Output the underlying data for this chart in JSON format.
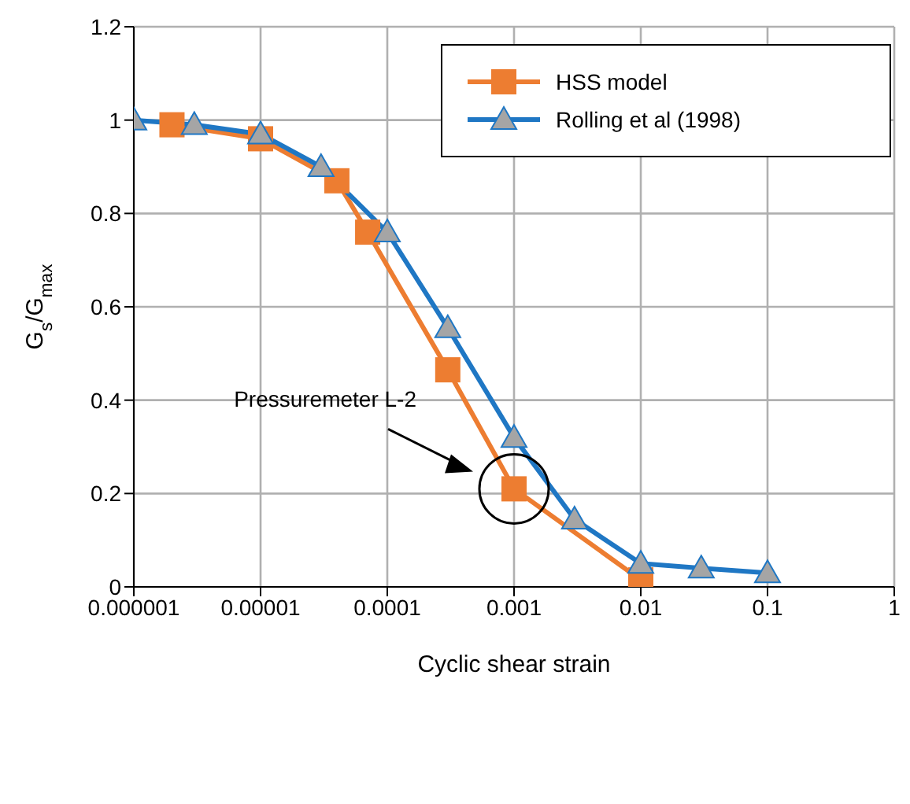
{
  "chart_data": {
    "type": "line",
    "xlabel": "Cyclic shear strain",
    "ylabel": "G$_{s}$/G$_{max}$",
    "log": "x",
    "xlim": [
      1e-06,
      1
    ],
    "xticks": [
      {
        "value": 1e-06,
        "label": "0.000001"
      },
      {
        "value": 1e-05,
        "label": "0.00001"
      },
      {
        "value": 0.0001,
        "label": "0.0001"
      },
      {
        "value": 0.001,
        "label": "0.001"
      },
      0.01,
      0.1,
      1
    ],
    "ylim": [
      0,
      1.2
    ],
    "yticks": [
      0,
      0.2,
      0.4,
      0.6,
      0.8,
      1,
      1.2
    ],
    "grid": true,
    "legend": "top right",
    "line_style": "solid",
    "series": [
      {
        "name": "HSS model",
        "color": "#ed7d31",
        "marker": "square",
        "x": [
          2e-06,
          1e-05,
          4e-05,
          7e-05,
          0.0003,
          0.001,
          0.01
        ],
        "values": [
          0.99,
          0.96,
          0.87,
          0.76,
          0.465,
          0.21,
          0.015
        ]
      },
      {
        "name": "Rolling et al (1998)",
        "color": "#1f77c4",
        "marker": "triangle",
        "x": [
          1e-06,
          3e-06,
          1e-05,
          3e-05,
          0.0001,
          0.0003,
          0.001,
          0.003,
          0.01,
          0.03,
          0.1
        ],
        "values": [
          1.0,
          0.99,
          0.97,
          0.9,
          0.76,
          0.555,
          0.32,
          0.145,
          0.05,
          0.04,
          0.03
        ]
      }
    ],
    "annotations": [
      "Pressuremeter L-2"
    ]
  }
}
